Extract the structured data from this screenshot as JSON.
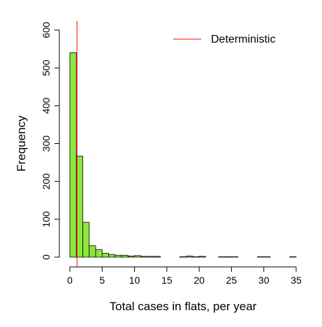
{
  "chart_data": {
    "type": "histogram",
    "xlabel": "Total cases in flats, per year",
    "ylabel": "Frequency",
    "bins": [
      0,
      1,
      2,
      3,
      4,
      5,
      6,
      7,
      8,
      9,
      10,
      11,
      12,
      13,
      14,
      15,
      16,
      17,
      18,
      19,
      20,
      21,
      22,
      23,
      24,
      25,
      26,
      27,
      28,
      29,
      30,
      31,
      32,
      33,
      34,
      35
    ],
    "counts": [
      540,
      267,
      92,
      30,
      20,
      10,
      7,
      5,
      5,
      3,
      4,
      2,
      2,
      2,
      0,
      0,
      0,
      1,
      3,
      1,
      2,
      0,
      0,
      1,
      1,
      1,
      0,
      0,
      0,
      1,
      1,
      0,
      0,
      0,
      1
    ],
    "color": "#8ee53f",
    "xlim": [
      0,
      35
    ],
    "xticks": [
      0,
      5,
      10,
      15,
      20,
      25,
      30,
      35
    ],
    "ylim": [
      0,
      600
    ],
    "yticks": [
      0,
      100,
      200,
      300,
      400,
      500,
      600
    ],
    "reference_line": {
      "name": "Deterministic",
      "value": 1.1,
      "color": "#ff0000"
    },
    "legend": "top-right"
  }
}
